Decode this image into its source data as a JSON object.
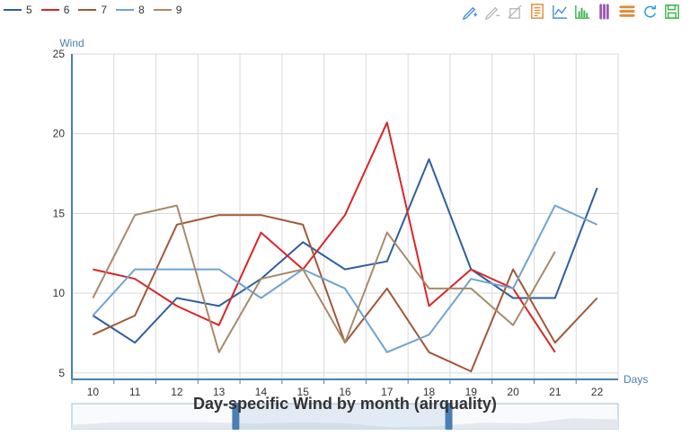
{
  "chart_data": {
    "type": "line",
    "title": "Day-specific Wind by month (airquality)",
    "xlabel": "Days",
    "ylabel": "Wind",
    "x": [
      10,
      11,
      12,
      13,
      14,
      15,
      16,
      17,
      18,
      19,
      20,
      21,
      22
    ],
    "ylim": [
      4.6,
      25
    ],
    "yticks": [
      5,
      10,
      15,
      20,
      25
    ],
    "grid": true,
    "legend_position": "top-left",
    "series": [
      {
        "name": "5",
        "color": "#2f5f9e",
        "values": [
          8.6,
          6.9,
          9.7,
          9.2,
          10.9,
          13.2,
          11.5,
          12.0,
          18.4,
          11.5,
          9.7,
          9.7,
          16.6
        ]
      },
      {
        "name": "6",
        "color": "#d62728",
        "values": [
          11.5,
          10.9,
          9.2,
          8.0,
          13.8,
          11.5,
          14.9,
          20.7,
          9.2,
          11.5,
          10.3,
          6.3,
          null
        ]
      },
      {
        "name": "7",
        "color": "#a0583a",
        "values": [
          7.4,
          8.6,
          14.3,
          14.9,
          14.9,
          14.3,
          6.9,
          10.3,
          6.3,
          5.1,
          11.5,
          6.9,
          9.7
        ]
      },
      {
        "name": "8",
        "color": "#6fa3d0",
        "values": [
          8.6,
          11.5,
          11.5,
          11.5,
          9.7,
          11.5,
          10.3,
          6.3,
          7.4,
          10.9,
          10.3,
          15.5,
          14.3
        ]
      },
      {
        "name": "9",
        "color": "#a88a6a",
        "values": [
          9.7,
          14.9,
          15.5,
          6.3,
          10.9,
          11.5,
          6.9,
          13.8,
          10.3,
          10.3,
          8.0,
          12.6,
          null
        ]
      }
    ],
    "datazoom": {
      "start": 0.3,
      "end": 0.69,
      "color": "#4a7fb5"
    }
  },
  "toolbox": {
    "icons": [
      {
        "name": "draw-line-icon",
        "color": "#4a90d9"
      },
      {
        "name": "eraser-icon",
        "color": "#bbbbbb"
      },
      {
        "name": "clear-icon",
        "color": "#bbbbbb"
      },
      {
        "name": "data-view-icon",
        "color": "#e08b3a"
      },
      {
        "name": "line-chart-icon",
        "color": "#4a90d9"
      },
      {
        "name": "bar-chart-icon",
        "color": "#3cb44b"
      },
      {
        "name": "stack-icon",
        "color": "#9b59b6"
      },
      {
        "name": "tiled-icon",
        "color": "#e08b3a"
      },
      {
        "name": "restore-icon",
        "color": "#2a9fd6"
      },
      {
        "name": "save-image-icon",
        "color": "#3cb44b"
      }
    ]
  }
}
